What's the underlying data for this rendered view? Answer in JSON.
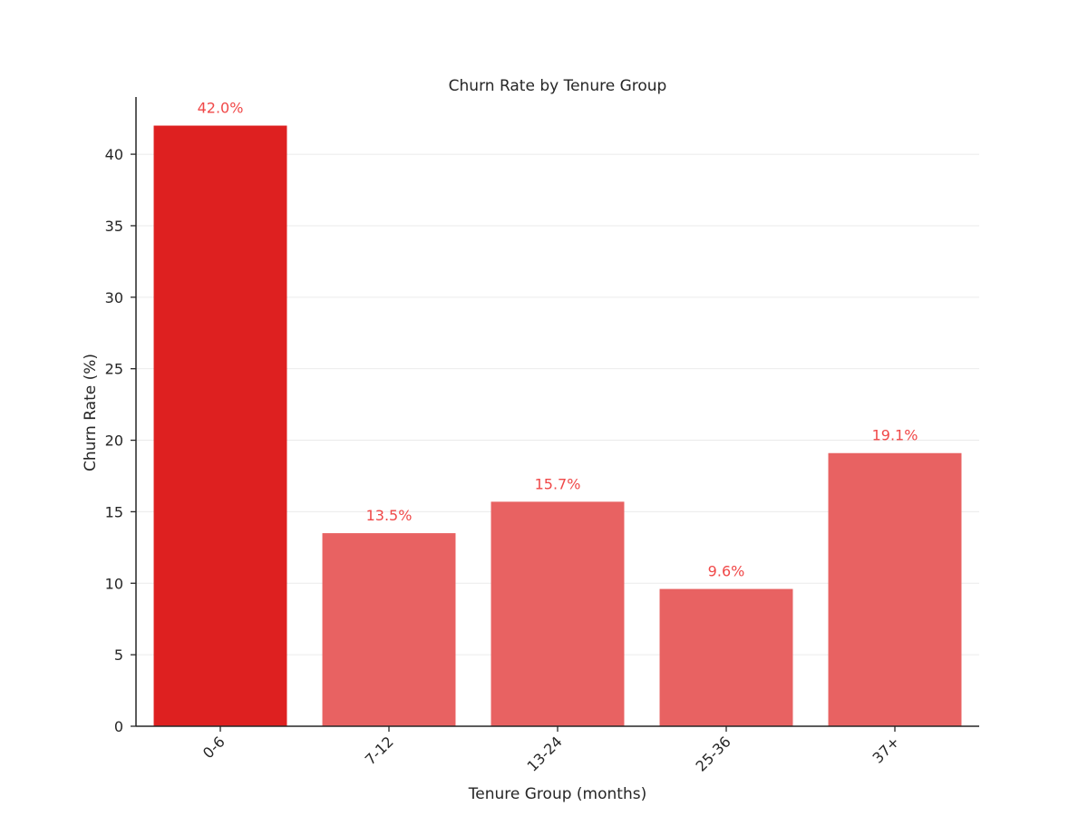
{
  "chart_data": {
    "type": "bar",
    "title": "Churn Rate by Tenure Group",
    "xlabel": "Tenure Group (months)",
    "ylabel": "Churn Rate (%)",
    "categories": [
      "0-6",
      "7-12",
      "13-24",
      "25-36",
      "37+"
    ],
    "values": [
      42.0,
      13.5,
      15.7,
      9.6,
      19.1
    ],
    "data_labels": [
      "42.0%",
      "13.5%",
      "15.7%",
      "9.6%",
      "19.1%"
    ],
    "highlighted_category": "0-6",
    "ylim": [
      0,
      44
    ],
    "yticks": [
      0,
      5,
      10,
      15,
      20,
      25,
      30,
      35,
      40
    ],
    "grid": "horizontal",
    "legend": "none",
    "colors": {
      "highlight_bar": "#de2020",
      "bar": "#e86262",
      "data_label": "#f04848",
      "axis": "#262626",
      "grid": "#ebebeb"
    }
  }
}
